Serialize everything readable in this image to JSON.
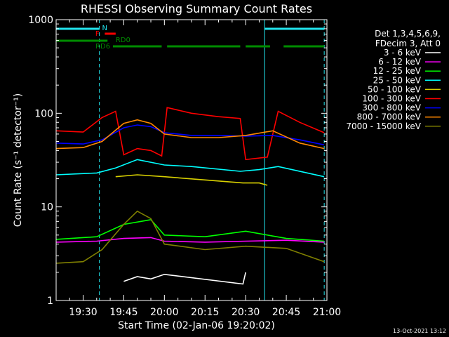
{
  "chart_data": {
    "type": "line",
    "title": "RHESSI Observing Summary Count Rates",
    "xlabel": "Start Time (02-Jan-06 19:20:02)",
    "ylabel": "Count Rate (s⁻¹ detector⁻¹)",
    "y_scale": "log",
    "ylim": [
      1,
      1000
    ],
    "xlim": [
      "19:20:02",
      "21:00"
    ],
    "x_ticks": [
      "19:30",
      "19:45",
      "20:00",
      "20:15",
      "20:30",
      "20:45",
      "21:00"
    ],
    "y_ticks": [
      "1",
      "10",
      "100",
      "1000"
    ],
    "legend_header": [
      "Det 1,3,4,5,6,9,",
      "FDecim 3, Att 0"
    ],
    "legend_placement": "right",
    "timestamp": "13-Oct-2021 13:12",
    "flags": [
      {
        "name": "N",
        "color": "#22e5ee",
        "segments": [
          [
            "19:20",
            "19:36"
          ],
          [
            "20:37",
            "20:59"
          ]
        ]
      },
      {
        "name": "F",
        "color": "#ff0000",
        "segments": [
          [
            "19:38",
            "19:42"
          ]
        ]
      },
      {
        "name": "RD0",
        "color": "#008c00",
        "segments": [
          [
            "19:20",
            "19:39"
          ]
        ]
      },
      {
        "name": "RD6",
        "color": "#008c00",
        "segments": [
          [
            "19:41",
            "19:59"
          ],
          [
            "20:01",
            "20:28"
          ],
          [
            "20:30",
            "20:39"
          ],
          [
            "20:44",
            "20:59"
          ]
        ]
      }
    ],
    "series": [
      {
        "name": "3 - 6 keV",
        "color": "#ffffff",
        "x": [
          "19:45",
          "19:50",
          "19:55",
          "20:00",
          "20:29",
          "20:30"
        ],
        "y": [
          1.6,
          1.8,
          1.7,
          1.9,
          1.5,
          2.0
        ]
      },
      {
        "name": "6 - 12 keV",
        "color": "#ff00ff",
        "x": [
          "19:20",
          "19:35",
          "19:45",
          "19:55",
          "20:00",
          "20:15",
          "20:30",
          "20:45",
          "20:59"
        ],
        "y": [
          4.2,
          4.3,
          4.6,
          4.7,
          4.3,
          4.2,
          4.3,
          4.4,
          4.2
        ]
      },
      {
        "name": "12 - 25 keV",
        "color": "#00ff00",
        "x": [
          "19:20",
          "19:35",
          "19:45",
          "19:55",
          "20:00",
          "20:15",
          "20:30",
          "20:45",
          "20:59"
        ],
        "y": [
          4.5,
          4.8,
          6.5,
          7.3,
          5.0,
          4.8,
          5.5,
          4.6,
          4.3
        ]
      },
      {
        "name": "25 - 50 keV",
        "color": "#00ffff",
        "x": [
          "19:20",
          "19:35",
          "19:42",
          "19:50",
          "20:00",
          "20:10",
          "20:28",
          "20:35",
          "20:42",
          "20:59"
        ],
        "y": [
          22,
          23,
          26,
          32,
          28,
          27,
          24,
          25,
          27,
          21
        ]
      },
      {
        "name": "50 - 100 keV",
        "color": "#d8d000",
        "x": [
          "19:42",
          "19:50",
          "20:00",
          "20:29",
          "20:35",
          "20:38"
        ],
        "y": [
          21,
          22,
          21,
          18,
          18,
          17
        ]
      },
      {
        "name": "100 - 300 keV",
        "color": "#ff0000",
        "x": [
          "19:20",
          "19:30",
          "19:37",
          "19:42",
          "19:45",
          "19:50",
          "19:55",
          "19:59",
          "20:01",
          "20:10",
          "20:20",
          "20:28",
          "20:30",
          "20:38",
          "20:42",
          "20:50",
          "20:59"
        ],
        "y": [
          65,
          63,
          90,
          105,
          36,
          42,
          40,
          35,
          115,
          100,
          92,
          88,
          32,
          34,
          105,
          80,
          62
        ]
      },
      {
        "name": "300 - 800 keV",
        "color": "#0000ff",
        "x": [
          "19:20",
          "19:30",
          "19:37",
          "19:45",
          "19:50",
          "19:55",
          "20:00",
          "20:10",
          "20:20",
          "20:30",
          "20:40",
          "20:50",
          "20:59"
        ],
        "y": [
          48,
          47,
          52,
          70,
          75,
          72,
          62,
          58,
          58,
          57,
          58,
          52,
          46
        ]
      },
      {
        "name": "800 - 7000 keV",
        "color": "#ff8800",
        "x": [
          "19:20",
          "19:30",
          "19:37",
          "19:45",
          "19:50",
          "19:55",
          "20:00",
          "20:10",
          "20:20",
          "20:30",
          "20:40",
          "20:50",
          "20:59"
        ],
        "y": [
          42,
          43,
          50,
          78,
          85,
          78,
          60,
          55,
          55,
          58,
          65,
          48,
          42
        ]
      },
      {
        "name": "7000 - 15000 keV",
        "color": "#808000",
        "x": [
          "19:20",
          "19:30",
          "19:37",
          "19:45",
          "19:50",
          "19:55",
          "20:00",
          "20:15",
          "20:30",
          "20:45",
          "20:59"
        ],
        "y": [
          2.5,
          2.6,
          3.5,
          6.5,
          9.0,
          7.5,
          4.0,
          3.5,
          3.8,
          3.6,
          2.6
        ]
      }
    ]
  }
}
